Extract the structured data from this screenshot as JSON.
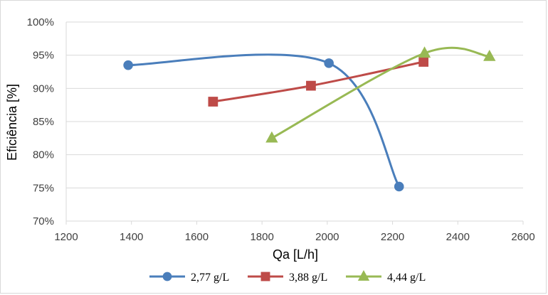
{
  "chart_data": {
    "type": "line",
    "title": "",
    "xlabel": "Qa [L/h]",
    "ylabel": "Eficiência [%]",
    "xlim": [
      1200,
      2600
    ],
    "ylim": [
      70,
      100
    ],
    "x_ticks": [
      "1200",
      "1400",
      "1600",
      "1800",
      "2000",
      "2200",
      "2400",
      "2600"
    ],
    "y_ticks": [
      "70%",
      "75%",
      "80%",
      "85%",
      "90%",
      "95%",
      "100%"
    ],
    "grid": "horizontal",
    "smooth": true,
    "legend_position": "bottom",
    "series": [
      {
        "name": "2,77 g/L",
        "color": "#4a7ebb",
        "marker": "circle",
        "points": [
          [
            1390,
            93.5
          ],
          [
            2005,
            93.8
          ],
          [
            2220,
            75.2
          ]
        ]
      },
      {
        "name": "3,88 g/L",
        "color": "#be4b48",
        "marker": "square",
        "points": [
          [
            1650,
            88.0
          ],
          [
            1950,
            90.4
          ],
          [
            2295,
            94.0
          ]
        ]
      },
      {
        "name": "4,44 g/L",
        "color": "#98b954",
        "marker": "triangle",
        "points": [
          [
            1830,
            82.5
          ],
          [
            2298,
            95.3
          ],
          [
            2497,
            94.8
          ]
        ]
      }
    ]
  }
}
